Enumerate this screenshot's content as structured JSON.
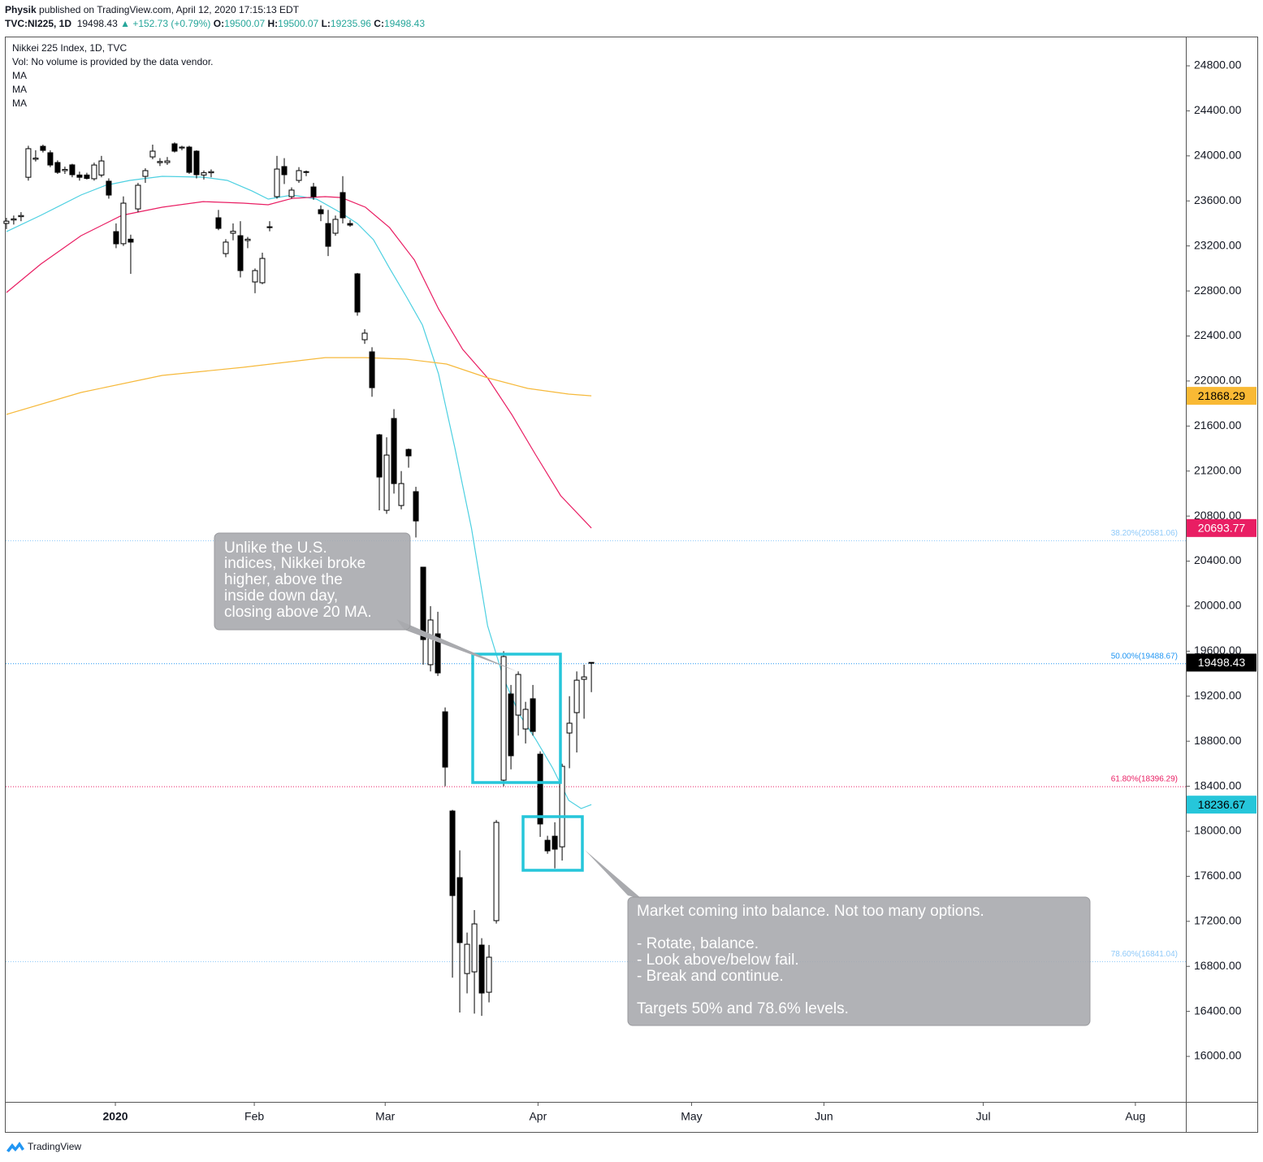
{
  "header": {
    "publisher": "Physik",
    "published": "published on TradingView.com, April 12, 2020 17:15:13 EDT",
    "symbol": "TVC:NI225, 1D",
    "last": "19498.43",
    "change": "▲ +152.73 (+0.79%)",
    "o_label": "O:",
    "o": "19500.07",
    "h_label": "H:",
    "h": "19500.07",
    "l_label": "L:",
    "l": "19235.96",
    "c_label": "C:",
    "c": "19498.43"
  },
  "legend": {
    "title": "Nikkei 225 Index, 1D, TVC",
    "volume": "Vol: No volume is provided by the data vendor."
  },
  "chart_data": {
    "type": "candlestick",
    "xlim": [
      -0.1,
      161.3
    ],
    "xticks": [
      {
        "value": 14.9,
        "label": "2020"
      },
      {
        "value": 33.9,
        "label": "Feb"
      },
      {
        "value": 51.8,
        "label": "Mar"
      },
      {
        "value": 72.7,
        "label": "Apr"
      },
      {
        "value": 93.7,
        "label": "May"
      },
      {
        "value": 111.8,
        "label": "Jun"
      },
      {
        "value": 133.6,
        "label": "Jul"
      },
      {
        "value": 154.4,
        "label": "Aug"
      }
    ],
    "ylim": [
      15596,
      25060
    ],
    "yticks": [
      {
        "value": 16000,
        "label": "16000.00"
      },
      {
        "value": 16400,
        "label": "16400.00"
      },
      {
        "value": 16800,
        "label": "16800.00"
      },
      {
        "value": 17200,
        "label": "17200.00"
      },
      {
        "value": 17600,
        "label": "17600.00"
      },
      {
        "value": 18000,
        "label": "18000.00"
      },
      {
        "value": 18400,
        "label": "18400.00"
      },
      {
        "value": 18800,
        "label": "18800.00"
      },
      {
        "value": 19200,
        "label": "19200.00"
      },
      {
        "value": 19600,
        "label": "19600.00"
      },
      {
        "value": 20000,
        "label": "20000.00"
      },
      {
        "value": 20400,
        "label": "20400.00"
      },
      {
        "value": 20800,
        "label": "20800.00"
      },
      {
        "value": 21200,
        "label": "21200.00"
      },
      {
        "value": 21600,
        "label": "21600.00"
      },
      {
        "value": 22000,
        "label": "22000.00"
      },
      {
        "value": 22400,
        "label": "22400.00"
      },
      {
        "value": 22800,
        "label": "22800.00"
      },
      {
        "value": 23200,
        "label": "23200.00"
      },
      {
        "value": 23600,
        "label": "23600.00"
      },
      {
        "value": 24000,
        "label": "24000.00"
      },
      {
        "value": 24400,
        "label": "24400.00"
      },
      {
        "value": 24800,
        "label": "24800.00"
      }
    ],
    "candles": {
      "up_color": "#ffffff",
      "down_color": "#000000",
      "x": [
        0,
        1,
        2,
        3,
        4,
        5,
        6,
        7,
        8,
        9,
        10,
        11,
        12,
        13,
        14,
        15,
        16,
        17,
        18,
        19,
        20,
        21,
        22,
        23,
        24,
        25,
        26,
        27,
        28,
        29,
        30,
        31,
        32,
        33,
        34,
        35,
        36,
        37,
        38,
        39,
        40,
        41,
        42,
        43,
        44,
        45,
        46,
        47,
        48,
        49,
        50,
        51,
        52,
        53,
        54,
        55,
        56,
        57,
        58,
        59,
        60,
        61,
        62,
        63,
        64,
        65,
        66,
        67,
        68,
        69,
        70,
        71,
        72,
        73,
        74,
        75,
        76,
        77,
        78,
        79,
        80
      ],
      "open": [
        23400,
        23430,
        23460,
        23810,
        23970,
        24085,
        24028,
        23941,
        23869,
        23920,
        23830,
        23830,
        23797,
        23830,
        23775,
        23327,
        23220,
        23260,
        23529,
        23818,
        23991,
        23940,
        23941,
        24107,
        24070,
        24078,
        24042,
        23830,
        23850,
        23450,
        23132,
        23313,
        23291,
        23248,
        22880,
        22873,
        23363,
        23638,
        23905,
        23638,
        23782,
        23854,
        23724,
        23522,
        23399,
        23313,
        23674,
        23399,
        22952,
        22367,
        22259,
        21522,
        20851,
        21667,
        20894,
        21392,
        21017,
        20346,
        19480,
        19754,
        19061,
        18180,
        17588,
        16736,
        16751,
        16989,
        16570,
        17206,
        18454,
        19220,
        19032,
        18909,
        19177,
        18685,
        17920,
        17956,
        17862,
        18873,
        19054,
        19350,
        19500.07
      ],
      "high": [
        23450,
        23470,
        23500,
        24090,
        24050,
        24100,
        24050,
        23960,
        23905,
        23930,
        23860,
        23850,
        23940,
        24000,
        23800,
        23400,
        23640,
        23300,
        23760,
        23890,
        24100,
        23980,
        23990,
        24120,
        24090,
        24090,
        24050,
        23870,
        23880,
        23520,
        23260,
        23400,
        23420,
        23280,
        23000,
        23140,
        23420,
        24000,
        23980,
        23720,
        23900,
        23870,
        23760,
        23560,
        23520,
        23470,
        23820,
        23430,
        22960,
        22460,
        22300,
        21530,
        21500,
        21750,
        21200,
        21400,
        21060,
        20350,
        20000,
        19950,
        19100,
        18190,
        17830,
        17100,
        17300,
        17050,
        16990,
        18100,
        19600,
        19300,
        19420,
        19150,
        19300,
        18710,
        17960,
        18080,
        18600,
        19200,
        19420,
        19480,
        19500.07
      ],
      "low": [
        23350,
        23390,
        23420,
        23780,
        23950,
        24030,
        23900,
        23840,
        23840,
        23810,
        23780,
        23790,
        23780,
        23810,
        23620,
        23180,
        23200,
        22952,
        23500,
        23760,
        23970,
        23910,
        23920,
        24030,
        24050,
        23840,
        23800,
        23790,
        23810,
        23340,
        23100,
        23250,
        22920,
        23180,
        22780,
        22860,
        23330,
        23620,
        23750,
        23620,
        23760,
        23820,
        23610,
        23420,
        23110,
        23290,
        23400,
        23370,
        22580,
        22330,
        21860,
        20851,
        20820,
        21000,
        20860,
        21230,
        20610,
        19480,
        19420,
        19380,
        18400,
        16700,
        16390,
        16560,
        16380,
        16360,
        16480,
        17180,
        18400,
        18550,
        18850,
        18780,
        18850,
        17950,
        17800,
        17670,
        17740,
        18560,
        18700,
        19000,
        19235.96
      ],
      "close": [
        23420,
        23440,
        23470,
        24064,
        23980,
        24049,
        23919,
        23854,
        23880,
        23833,
        23810,
        23800,
        23919,
        23955,
        23652,
        23219,
        23580,
        23234,
        23739,
        23869,
        24042,
        23950,
        23955,
        24042,
        24078,
        23854,
        23833,
        23850,
        23860,
        23356,
        23234,
        23330,
        22981,
        23260,
        22981,
        23089,
        23370,
        23883,
        23833,
        23696,
        23869,
        23860,
        23638,
        23486,
        23197,
        23436,
        23450,
        23385,
        22613,
        22425,
        21941,
        21147,
        21342,
        21089,
        21089,
        21335,
        20757,
        19703,
        19877,
        19407,
        18570,
        17429,
        17011,
        16996,
        17177,
        16563,
        16881,
        18079,
        19552,
        18671,
        19393,
        19083,
        18887,
        18065,
        17826,
        17841,
        18577,
        18960,
        19342,
        19371,
        19498.43
      ]
    },
    "series": [
      {
        "name": "MA",
        "color": "#4dd0e1",
        "x": [
          0,
          4.7,
          10.2,
          13.6,
          16.9,
          21.3,
          26.9,
          30.2,
          33.6,
          35.8,
          39.1,
          42.4,
          45.8,
          48,
          50.2,
          52.4,
          54.7,
          56.9,
          59.1,
          61.3,
          63.6,
          65.8,
          68,
          70.2,
          72.4,
          74.7,
          76.9,
          78.6,
          80
        ],
        "values": [
          23327,
          23472,
          23652,
          23739,
          23782,
          23818,
          23811,
          23782,
          23688,
          23616,
          23652,
          23616,
          23493,
          23399,
          23255,
          23002,
          22750,
          22497,
          22064,
          21414,
          20692,
          19826,
          19357,
          19032,
          18815,
          18562,
          18274,
          18202,
          18236.67
        ]
      },
      {
        "name": "MA",
        "color": "#e91e63",
        "x": [
          0,
          4.7,
          10.2,
          15.8,
          21.3,
          26.9,
          32.4,
          35.8,
          39.1,
          43.6,
          45.8,
          49.1,
          52.4,
          55.8,
          59.1,
          62.4,
          65.8,
          69.1,
          72.4,
          75.8,
          80
        ],
        "values": [
          22786,
          23039,
          23291,
          23472,
          23544,
          23594,
          23580,
          23566,
          23623,
          23638,
          23630,
          23544,
          23363,
          23075,
          22641,
          22281,
          22028,
          21703,
          21342,
          20981,
          20693.77
        ]
      },
      {
        "name": "MA",
        "color": "#f6b93b",
        "x": [
          0,
          10.2,
          21.3,
          32.4,
          43.6,
          49.1,
          54.7,
          60.2,
          65.8,
          71.3,
          76.9,
          80
        ],
        "values": [
          21703,
          21898,
          22050,
          22122,
          22208,
          22208,
          22194,
          22151,
          22028,
          21934,
          21884,
          21868.29
        ]
      }
    ],
    "fib_levels": [
      {
        "value": 20581.06,
        "label": "38.20%(20581.06)",
        "color": "#90caf9"
      },
      {
        "value": 19488.67,
        "label": "50.00%(19488.67)",
        "color": "#2196f3"
      },
      {
        "value": 18396.29,
        "label": "61.80%(18396.29)",
        "color": "#e91e63"
      },
      {
        "value": 16841.04,
        "label": "78.60%(16841.04)",
        "color": "#90caf9"
      }
    ],
    "price_tags": [
      {
        "value": 21868.29,
        "color": "#f9b934",
        "text_color": "#000000"
      },
      {
        "value": 20693.77,
        "color": "#e91e63",
        "text_color": "#ffffff"
      },
      {
        "value": 19498.43,
        "color": "#000000",
        "text_color": "#ffffff"
      },
      {
        "value": 18236.67,
        "color": "#26c6da",
        "text_color": "#000000"
      }
    ]
  },
  "annotations": [
    {
      "lines": [
        "Unlike the U.S.",
        "indices, Nikkei broke",
        "higher, above the",
        "inside down day,",
        "closing above 20 MA."
      ]
    },
    {
      "lines": [
        "Market coming into balance. Not too many options.",
        "- Rotate, balance.",
        "- Look above/below fail.",
        "- Break and continue.",
        "Targets 50% and 78.6% levels."
      ]
    }
  ],
  "footer": {
    "brand": "TradingView"
  }
}
